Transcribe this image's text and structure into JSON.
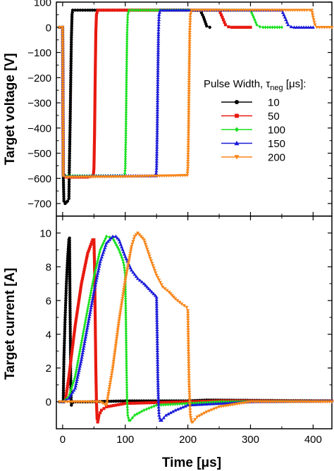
{
  "chart_data": [
    {
      "type": "line",
      "ylabel": "Target voltage [V]",
      "ylim": [
        -750,
        100
      ],
      "xlim": [
        -10,
        430
      ],
      "yticks": [
        100,
        0,
        -100,
        -200,
        -300,
        -400,
        -500,
        -600,
        -700
      ],
      "ytick_labels": [
        "100",
        "0",
        "−100",
        "−200",
        "−300",
        "−400",
        "−500",
        "−600",
        "−700"
      ],
      "legend_title_main": "Pulse Width, τ",
      "legend_title_sub": "neg",
      "legend_title_unit": " [μs]:",
      "legend_placement": "right",
      "series": [
        {
          "name": "10",
          "color": "#000000",
          "marker": "circle",
          "x": [
            -5,
            0,
            1,
            2,
            4,
            6,
            8,
            10,
            11,
            12,
            13,
            14,
            15,
            16,
            20,
            40,
            80,
            140,
            200,
            220,
            225,
            230,
            235
          ],
          "y": [
            0,
            0,
            -580,
            -690,
            -700,
            -695,
            -690,
            -680,
            -520,
            -380,
            -200,
            -40,
            50,
            68,
            68,
            68,
            68,
            68,
            68,
            67,
            40,
            5,
            0
          ]
        },
        {
          "name": "50",
          "color": "#e8190f",
          "marker": "square",
          "x": [
            0,
            1,
            5,
            20,
            40,
            49,
            50,
            51,
            52,
            53,
            54,
            56,
            60,
            100,
            200,
            250,
            255,
            260,
            265,
            270,
            300
          ],
          "y": [
            0,
            -580,
            -595,
            -595,
            -595,
            -590,
            -560,
            -420,
            -200,
            -20,
            50,
            68,
            68,
            68,
            68,
            68,
            40,
            10,
            2,
            0,
            0
          ]
        },
        {
          "name": "100",
          "color": "#18e01e",
          "marker": "diamond",
          "x": [
            0,
            1,
            5,
            50,
            99,
            100,
            101,
            102,
            103,
            104,
            106,
            110,
            150,
            250,
            300,
            305,
            310,
            315,
            320,
            350
          ],
          "y": [
            0,
            -585,
            -590,
            -590,
            -590,
            -560,
            -420,
            -200,
            -20,
            50,
            68,
            68,
            68,
            68,
            68,
            40,
            10,
            2,
            0,
            0
          ]
        },
        {
          "name": "150",
          "color": "#1a1ad8",
          "marker": "triangle",
          "x": [
            0,
            1,
            5,
            80,
            149,
            150,
            151,
            152,
            153,
            154,
            156,
            160,
            200,
            300,
            350,
            355,
            360,
            365,
            370,
            400
          ],
          "y": [
            0,
            -585,
            -592,
            -590,
            -590,
            -560,
            -420,
            -200,
            -20,
            50,
            68,
            68,
            68,
            68,
            68,
            40,
            10,
            2,
            0,
            0
          ]
        },
        {
          "name": "200",
          "color": "#f7861a",
          "marker": "triangle-down",
          "x": [
            -5,
            0,
            1,
            5,
            100,
            199,
            200,
            201,
            202,
            203,
            204,
            206,
            210,
            300,
            390,
            395,
            398,
            400,
            403,
            406,
            430
          ],
          "y": [
            0,
            0,
            -590,
            -595,
            -593,
            -588,
            -560,
            -420,
            -200,
            -20,
            50,
            68,
            68,
            68,
            68,
            68,
            68,
            40,
            10,
            0,
            0
          ]
        }
      ]
    },
    {
      "type": "line",
      "xlabel": "Time [μs]",
      "ylabel": "Target current [A]",
      "ylim": [
        -1.6,
        11.0
      ],
      "xlim": [
        -10,
        430
      ],
      "xticks": [
        0,
        100,
        200,
        300,
        400
      ],
      "xtick_labels": [
        "0",
        "100",
        "200",
        "300",
        "400"
      ],
      "yticks": [
        0,
        2,
        4,
        6,
        8,
        10
      ],
      "ytick_labels": [
        "0",
        "2",
        "4",
        "6",
        "8",
        "10"
      ],
      "series": [
        {
          "name": "10",
          "color": "#000000",
          "marker": "circle",
          "x": [
            -5,
            0,
            1,
            2,
            4,
            6,
            8,
            10,
            11,
            12,
            13,
            14,
            16,
            20,
            40,
            100,
            200,
            230,
            430
          ],
          "y": [
            0,
            0,
            0.1,
            2.5,
            5.0,
            7.0,
            8.5,
            9.6,
            9.7,
            5.0,
            1.0,
            -0.2,
            -0.05,
            0,
            0,
            0.05,
            0.05,
            0.1,
            0.05
          ]
        },
        {
          "name": "50",
          "color": "#e8190f",
          "marker": "square",
          "x": [
            0,
            1,
            5,
            10,
            20,
            30,
            40,
            48,
            50,
            51,
            52,
            53,
            54,
            55,
            56,
            58,
            62,
            70,
            100,
            200,
            250,
            430
          ],
          "y": [
            0,
            0,
            0.2,
            1.5,
            4.5,
            7.0,
            8.8,
            9.6,
            9.6,
            8.0,
            5.0,
            2.0,
            0,
            -1.0,
            -1.2,
            -0.8,
            -0.5,
            -0.3,
            -0.1,
            0,
            0.05,
            0.05
          ]
        },
        {
          "name": "100",
          "color": "#18e01e",
          "marker": "diamond",
          "x": [
            0,
            1,
            10,
            20,
            30,
            40,
            50,
            60,
            70,
            80,
            90,
            96,
            98,
            100,
            101,
            102,
            103,
            104,
            106,
            108,
            115,
            130,
            150,
            250,
            430
          ],
          "y": [
            0,
            0,
            0.3,
            1.5,
            3.5,
            5.5,
            7.4,
            9.0,
            9.8,
            9.7,
            9.0,
            8.4,
            8.1,
            7.5,
            5.0,
            2.0,
            0,
            -0.8,
            -1.1,
            -1.1,
            -0.8,
            -0.5,
            -0.2,
            0,
            0.05
          ]
        },
        {
          "name": "150",
          "color": "#1a1ad8",
          "marker": "triangle",
          "x": [
            0,
            1,
            10,
            20,
            30,
            40,
            50,
            60,
            70,
            80,
            85,
            90,
            100,
            110,
            120,
            130,
            140,
            148,
            150,
            151,
            152,
            153,
            154,
            156,
            158,
            165,
            180,
            200,
            300,
            430
          ],
          "y": [
            0,
            0,
            0.2,
            0.8,
            2.5,
            4.5,
            6.5,
            8.3,
            9.4,
            9.8,
            9.8,
            9.6,
            8.6,
            7.8,
            7.3,
            7.0,
            6.6,
            6.3,
            6.2,
            4.0,
            1.5,
            0,
            -0.8,
            -1.1,
            -1.1,
            -0.8,
            -0.5,
            -0.2,
            0,
            0.05
          ]
        },
        {
          "name": "200",
          "color": "#f7861a",
          "marker": "triangle-down",
          "x": [
            -5,
            0,
            30,
            50,
            60,
            70,
            80,
            90,
            100,
            110,
            115,
            120,
            130,
            140,
            150,
            160,
            170,
            180,
            190,
            198,
            200,
            201,
            202,
            203,
            204,
            206,
            208,
            215,
            230,
            250,
            300,
            430
          ],
          "y": [
            0,
            0,
            0,
            0,
            0,
            -0.2,
            2.0,
            4.8,
            7.2,
            9.2,
            9.8,
            10.0,
            9.6,
            8.5,
            7.5,
            6.8,
            6.5,
            6.1,
            5.8,
            5.6,
            5.4,
            3.0,
            1.0,
            0,
            -0.8,
            -1.2,
            -1.2,
            -0.9,
            -0.6,
            -0.3,
            0,
            0
          ]
        }
      ]
    }
  ]
}
